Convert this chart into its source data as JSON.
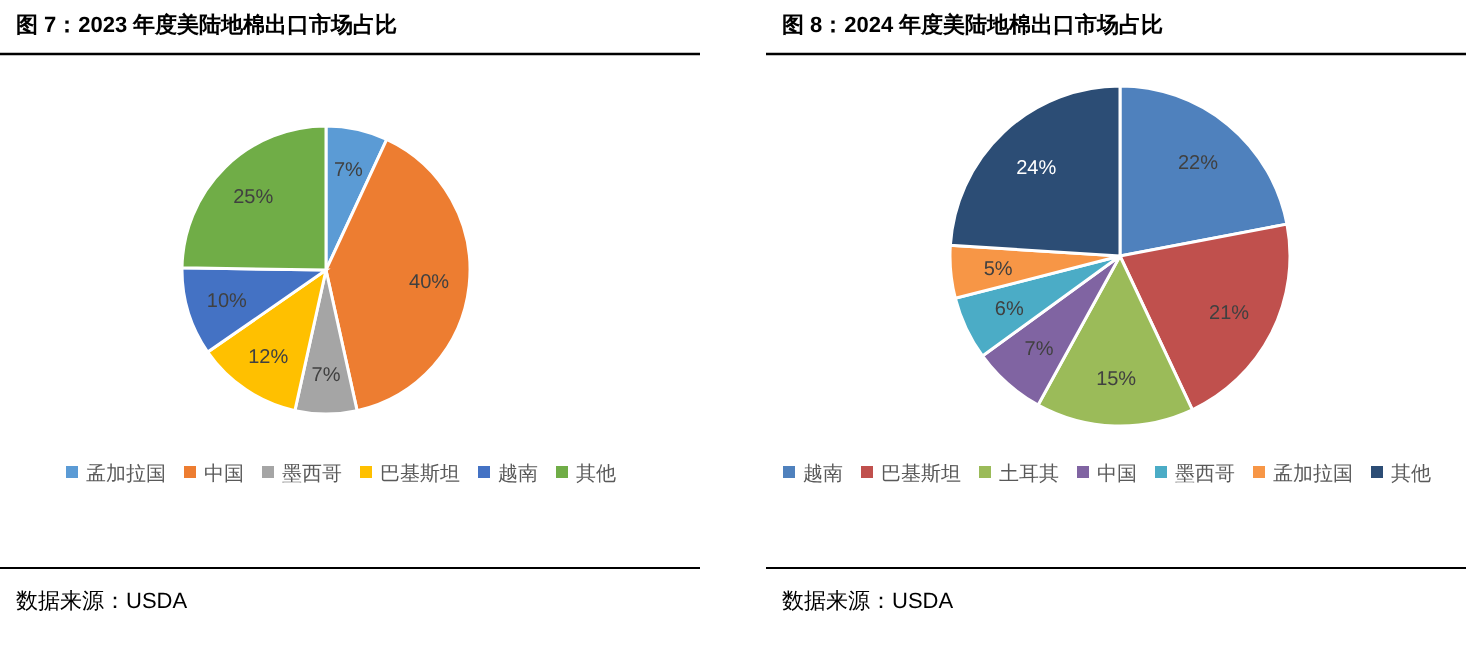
{
  "chart_data": [
    {
      "type": "pie",
      "title": "图 7：2023 年度美陆地棉出口市场占比",
      "categories": [
        "孟加拉国",
        "中国",
        "墨西哥",
        "巴基斯坦",
        "越南",
        "其他"
      ],
      "values": [
        7,
        40,
        7,
        12,
        10,
        25
      ],
      "colors": [
        "#5b9bd5",
        "#ed7d31",
        "#a5a5a5",
        "#ffc000",
        "#4472c4",
        "#70ad47"
      ],
      "value_labels": [
        "7%",
        "40%",
        "7%",
        "12%",
        "10%",
        "25%"
      ],
      "legend": "bottom",
      "annotations": [
        "数据来源：USDA"
      ]
    },
    {
      "type": "pie",
      "title": "图 8：2024 年度美陆地棉出口市场占比",
      "categories": [
        "越南",
        "巴基斯坦",
        "土耳其",
        "中国",
        "墨西哥",
        "孟加拉国",
        "其他"
      ],
      "values": [
        22,
        21,
        15,
        7,
        6,
        5,
        24
      ],
      "colors": [
        "#4f81bd",
        "#c0504d",
        "#9bbb59",
        "#8064a2",
        "#4bacc6",
        "#f79646",
        "#2c4d75"
      ],
      "value_labels": [
        "22%",
        "21%",
        "15%",
        "7%",
        "6%",
        "5%",
        "24%"
      ],
      "legend": "bottom",
      "annotations": [
        "数据来源：USDA"
      ]
    }
  ]
}
